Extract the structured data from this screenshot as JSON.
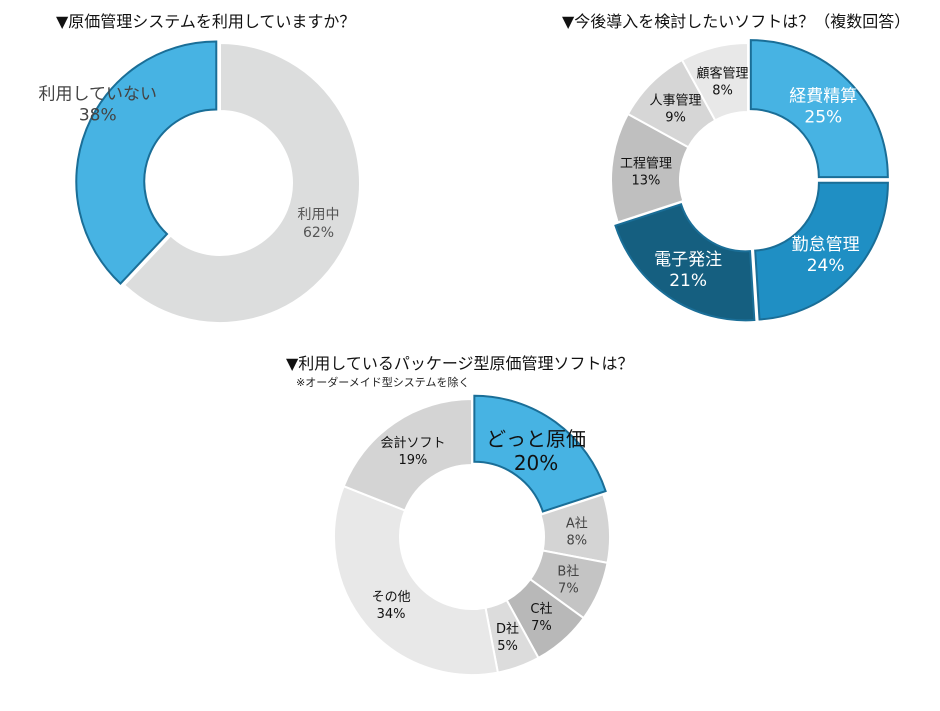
{
  "chart_data": [
    {
      "type": "pie",
      "title": "▼原価管理システムを利用していますか？",
      "donut": true,
      "slices": [
        {
          "label": "利用中",
          "value": 62,
          "value_label": "62%",
          "color": "#dcdddd",
          "text_color": "#555555",
          "exploded": false
        },
        {
          "label": "利用していない",
          "value": 38,
          "value_label": "38%",
          "color": "#47b3e3",
          "text_color": "#444444",
          "exploded": true
        }
      ]
    },
    {
      "type": "pie",
      "title": "▼今後導入を検討したいソフトは？（複数回答）",
      "donut": true,
      "slices": [
        {
          "label": "経費精算",
          "value": 25,
          "value_label": "25%",
          "color": "#47b3e3",
          "text_color": "#ffffff",
          "exploded": true
        },
        {
          "label": "勤怠管理",
          "value": 24,
          "value_label": "24%",
          "color": "#1f8fc4",
          "text_color": "#ffffff",
          "exploded": true
        },
        {
          "label": "電子発注",
          "value": 21,
          "value_label": "21%",
          "color": "#155f80",
          "text_color": "#ffffff",
          "exploded": true
        },
        {
          "label": "工程管理",
          "value": 13,
          "value_label": "13%",
          "color": "#bfbfbf",
          "text_color": "#111111",
          "exploded": false
        },
        {
          "label": "人事管理",
          "value": 9,
          "value_label": "9%",
          "color": "#d6d6d6",
          "text_color": "#111111",
          "exploded": false
        },
        {
          "label": "顧客管理",
          "value": 8,
          "value_label": "8%",
          "color": "#e8e8e8",
          "text_color": "#111111",
          "exploded": false
        }
      ]
    },
    {
      "type": "pie",
      "title": "▼利用しているパッケージ型原価管理ソフトは？",
      "subtitle": "※オーダーメイド型システムを除く",
      "donut": true,
      "slices": [
        {
          "label": "どっと原価",
          "value": 20,
          "value_label": "20%",
          "color": "#47b3e3",
          "text_color": "#111111",
          "exploded": true
        },
        {
          "label": "A社",
          "value": 8,
          "value_label": "8%",
          "color": "#d4d4d4",
          "text_color": "#444444",
          "exploded": false
        },
        {
          "label": "B社",
          "value": 7,
          "value_label": "7%",
          "color": "#c4c4c4",
          "text_color": "#444444",
          "exploded": false
        },
        {
          "label": "C社",
          "value": 7,
          "value_label": "7%",
          "color": "#b8b8b8",
          "text_color": "#111111",
          "exploded": false
        },
        {
          "label": "D社",
          "value": 5,
          "value_label": "5%",
          "color": "#dcdcdc",
          "text_color": "#111111",
          "exploded": false
        },
        {
          "label": "その他",
          "value": 34,
          "value_label": "34%",
          "color": "#e8e8e8",
          "text_color": "#111111",
          "exploded": false
        },
        {
          "label": "会計ソフト",
          "value": 19,
          "value_label": "19%",
          "color": "#d4d4d4",
          "text_color": "#111111",
          "exploded": false
        }
      ]
    }
  ]
}
